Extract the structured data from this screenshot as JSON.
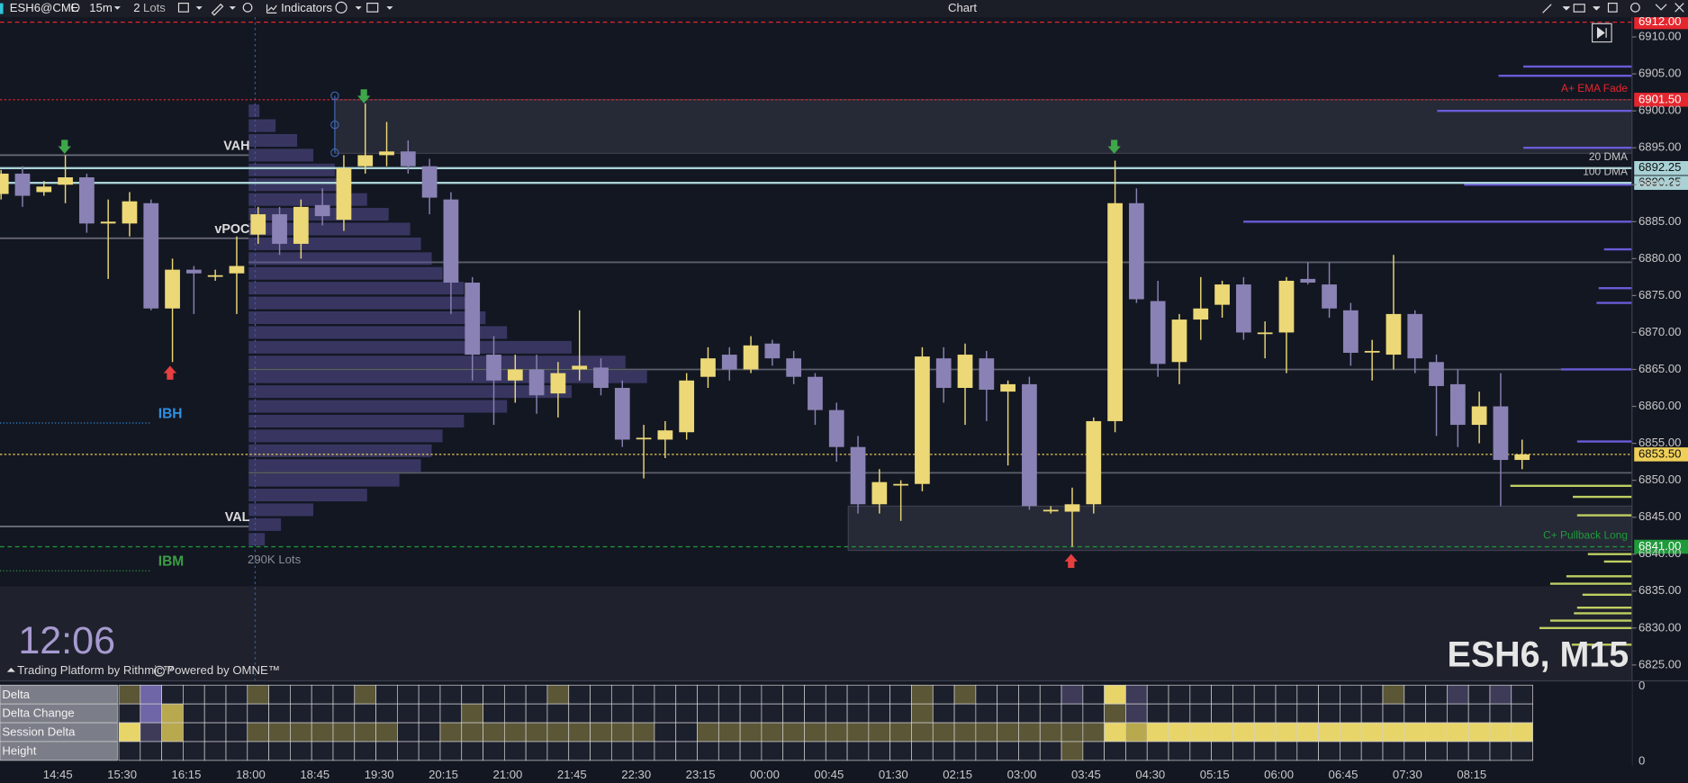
{
  "toolbar": {
    "symbol": "ESH6@CME",
    "interval": "15m",
    "quantity": 2,
    "quantity_unit": "Lots",
    "indicators": "Indicators",
    "title": "Chart"
  },
  "chart_data": {
    "type": "candlestick",
    "categories": [
      null,
      null,
      null,
      "14:45",
      null,
      null,
      "15:30",
      null,
      null,
      "16:15",
      null,
      null,
      "18:00",
      null,
      null,
      "18:45",
      null,
      null,
      "19:30",
      null,
      null,
      "20:15",
      null,
      null,
      "21:00",
      null,
      null,
      "21:45",
      null,
      null,
      "22:30",
      null,
      null,
      "23:15",
      null,
      null,
      "00:00",
      null,
      null,
      "00:45",
      null,
      null,
      "01:30",
      null,
      null,
      "02:15",
      null,
      null,
      "03:00",
      null,
      null,
      "03:45",
      null,
      null,
      "04:30",
      null,
      null,
      "05:15",
      null,
      null,
      "06:00",
      null,
      null,
      "06:45",
      null,
      null,
      "07:30",
      null,
      null,
      "08:15",
      null,
      null
    ],
    "open": [
      6888.75,
      6891.5,
      6889,
      6890,
      6891,
      6884.75,
      6884.75,
      6887.5,
      6873.25,
      6878.5,
      6877.75,
      6878,
      6883.25,
      6886,
      6882,
      6887.25,
      6885.25,
      6892.5,
      6894,
      6894.5,
      6892.5,
      6888,
      6876.75,
      6867,
      6863.5,
      6865,
      6861.75,
      6865,
      6865.25,
      6862.5,
      6855.75,
      6855.5,
      6856.5,
      6864,
      6867,
      6865,
      6868.5,
      6866.5,
      6864,
      6859.5,
      6854.5,
      6846.75,
      6849.5,
      6849.5,
      6866.5,
      6862.5,
      6866.5,
      6862,
      6863,
      6846,
      6845.75,
      6846.75,
      6858,
      6887.5,
      6874.25,
      6866,
      6871.75,
      6873.75,
      6876.5,
      6870,
      6870,
      6877.25,
      6876.5,
      6873,
      6867.5,
      6867,
      6872.5,
      6866,
      6863,
      6857.5,
      6860,
      6852.75
    ],
    "high": [
      6892,
      6892.5,
      6890.5,
      6894,
      6891.5,
      6888,
      6889,
      6888,
      6880,
      6879,
      6878.5,
      6883,
      6887,
      6887,
      6888,
      6889.5,
      6894,
      6901,
      6898.5,
      6896,
      6893.5,
      6889,
      6877.5,
      6869.5,
      6867,
      6867,
      6866,
      6873,
      6866.5,
      6863.5,
      6857.5,
      6858,
      6864.5,
      6868,
      6868,
      6869.5,
      6869,
      6867.5,
      6864.5,
      6860.5,
      6856,
      6851.5,
      6850,
      6868,
      6868,
      6868.5,
      6867.5,
      6863.5,
      6864,
      6846.5,
      6849,
      6858.5,
      6893.25,
      6889.5,
      6877,
      6872.5,
      6877.5,
      6877,
      6877.5,
      6871.5,
      6877.5,
      6879.5,
      6879.5,
      6874,
      6869,
      6880.5,
      6873,
      6867,
      6865,
      6862,
      6864.5,
      6855.5
    ],
    "low": [
      6888,
      6887,
      6888.5,
      6887.5,
      6883.5,
      6877.25,
      6883,
      6873,
      6866,
      6872.5,
      6877,
      6872.5,
      6882,
      6880.5,
      6880,
      6884.5,
      6883.75,
      6891.5,
      6892.5,
      6891.5,
      6886,
      6872.5,
      6863.5,
      6857.5,
      6860.5,
      6859,
      6858.5,
      6863.5,
      6861.5,
      6854.5,
      6850.25,
      6853,
      6855.5,
      6862.5,
      6863.5,
      6864.5,
      6865.5,
      6863,
      6857.5,
      6852.5,
      6845.5,
      6845.5,
      6844.5,
      6848.5,
      6860.5,
      6857.5,
      6858,
      6852,
      6846,
      6845.5,
      6841,
      6845.5,
      6856.5,
      6874,
      6864,
      6863,
      6869,
      6872,
      6869,
      6866.5,
      6864.5,
      6876.5,
      6872,
      6865.5,
      6863.5,
      6865,
      6864.5,
      6856,
      6854.5,
      6855,
      6846.5,
      6851.5
    ],
    "close": [
      6891.5,
      6888.5,
      6889.75,
      6891,
      6884.75,
      6885,
      6887.75,
      6873.25,
      6878.5,
      6878,
      6877.75,
      6879,
      6886,
      6882,
      6887,
      6885.75,
      6892.25,
      6894,
      6894.5,
      6892.5,
      6888.25,
      6876.75,
      6867,
      6863.5,
      6865,
      6861.5,
      6864.5,
      6865.5,
      6862.5,
      6855.5,
      6855.75,
      6856.75,
      6863.5,
      6866.5,
      6865,
      6868.25,
      6866.5,
      6864,
      6859.5,
      6854.5,
      6846.75,
      6849.75,
      6849.5,
      6866.75,
      6862.5,
      6867,
      6862.25,
      6863,
      6846.5,
      6846,
      6846.75,
      6858,
      6887.5,
      6874.5,
      6865.75,
      6871.75,
      6873.25,
      6876.5,
      6870,
      6870,
      6877,
      6876.75,
      6873.25,
      6867.25,
      6867.5,
      6872.5,
      6866.5,
      6862.75,
      6857.5,
      6860,
      6852.75,
      6853.5
    ],
    "up_color": "#ecd876",
    "down_color": "#8a82b4",
    "ylim": [
      6823,
      6915
    ],
    "yticks": [
      {
        "value": 6825,
        "label": "6825.00"
      },
      {
        "value": 6830,
        "label": "6830.00"
      },
      {
        "value": 6835,
        "label": "6835.00"
      },
      {
        "value": 6840,
        "label": "6840.00"
      },
      {
        "value": 6845,
        "label": "6845.00"
      },
      {
        "value": 6850,
        "label": "6850.00"
      },
      {
        "value": 6855,
        "label": "6855.00"
      },
      {
        "value": 6860,
        "label": "6860.00"
      },
      {
        "value": 6865,
        "label": "6865.00"
      },
      {
        "value": 6870,
        "label": "6870.00"
      },
      {
        "value": 6875,
        "label": "6875.00"
      },
      {
        "value": 6880,
        "label": "6880.00"
      },
      {
        "value": 6885,
        "label": "6885.00"
      },
      {
        "value": 6890,
        "label": "6890.00"
      },
      {
        "value": 6895,
        "label": "6895.00"
      },
      {
        "value": 6900,
        "label": "6900.00"
      },
      {
        "value": 6905,
        "label": "6905.00"
      },
      {
        "value": 6910,
        "label": "6910.00"
      }
    ]
  },
  "levels": [
    {
      "value": 6912,
      "label": "6912.00",
      "color": "#e5262e",
      "style": "dashed"
    },
    {
      "value": 6901.5,
      "label": "6901.50",
      "color": "#e5262e",
      "style": "dotted",
      "name": "A+ EMA Fade"
    },
    {
      "value": 6892.25,
      "label": "6892.25",
      "color": "#a8d2d6",
      "style": "solid",
      "name": "20 DMA"
    },
    {
      "value": 6890.25,
      "label": "6890.25",
      "color": "#a8d2d6",
      "style": "solid",
      "name": "100 DMA"
    },
    {
      "value": 6853.5,
      "label": "6853.50",
      "color": "#efcf58",
      "style": "dotted"
    },
    {
      "value": 6841,
      "label": "6841.00",
      "color": "#1f9a3a",
      "style": "dashed",
      "name": "C+ Pullback Long"
    }
  ],
  "zones": [
    {
      "high": 6901.5,
      "low": 6894.25
    },
    {
      "high": 6846.5,
      "low": 6840.5
    }
  ],
  "session_levels": [
    {
      "label": "VAH",
      "value": 6894
    },
    {
      "label": "vPOC",
      "value": 6882.75
    },
    {
      "label": "VAL",
      "value": 6843.75
    }
  ],
  "ib_levels": [
    {
      "label": "IBH",
      "value": 6857.75,
      "color": "#2f8fe0"
    },
    {
      "label": "IBM",
      "value": 6837.75,
      "color": "#3c9f45"
    }
  ],
  "gray_lines": [
    6879.5,
    6865,
    6851
  ],
  "volume_profile": {
    "label": "290K Lots",
    "xlim": [
      0,
      400
    ],
    "prices": [
      6900,
      6898,
      6896,
      6894,
      6892,
      6890,
      6888,
      6886,
      6884,
      6882,
      6880,
      6878,
      6876,
      6874,
      6872,
      6870,
      6868,
      6866,
      6864,
      6862,
      6860,
      6858,
      6856,
      6854,
      6852,
      6850,
      6848,
      6846,
      6844,
      6842
    ],
    "values": [
      10,
      25,
      45,
      60,
      80,
      90,
      110,
      130,
      150,
      160,
      170,
      180,
      200,
      210,
      220,
      240,
      300,
      350,
      370,
      300,
      240,
      200,
      180,
      170,
      160,
      140,
      110,
      60,
      30,
      15
    ]
  },
  "right_profile": [
    {
      "color": "#6a5bd8",
      "prices": [
        6906,
        6904.75,
        6900,
        6895,
        6890,
        6885,
        6881.25,
        6876,
        6874,
        6865,
        6855.25
      ],
      "values": [
        101,
        124,
        181,
        101,
        156,
        361,
        26,
        31,
        33,
        66,
        51
      ]
    },
    {
      "color": "#bfcf62",
      "prices": [
        6849.25,
        6847.75,
        6845.25,
        6840,
        6839,
        6837,
        6836,
        6834.5,
        6832.75,
        6832,
        6831,
        6830,
        6827.75
      ],
      "values": [
        113,
        55,
        51,
        41,
        26,
        61,
        76,
        46,
        51,
        54,
        76,
        86,
        56
      ]
    }
  ],
  "indicator_table": {
    "colors": [
      "#8a80c0",
      "#6f66a8",
      "#3d3b58",
      "#1c1f2c",
      "#5a5636",
      "#b8a84e",
      "#e8d56a"
    ],
    "rows": [
      {
        "name": "Delta",
        "values": [
          1,
          -2,
          0,
          0,
          0,
          0,
          1,
          0,
          0,
          0,
          0,
          1,
          0,
          0,
          0,
          0,
          0,
          0,
          0,
          0,
          1,
          0,
          0,
          0,
          0,
          0,
          0,
          0,
          0,
          0,
          0,
          0,
          0,
          0,
          0,
          0,
          0,
          1,
          0,
          1,
          0,
          0,
          0,
          0,
          -1,
          0,
          3,
          -1,
          0,
          0,
          0,
          0,
          0,
          0,
          0,
          0,
          0,
          0,
          0,
          1,
          0,
          0,
          -1,
          0,
          -1,
          0
        ]
      },
      {
        "name": "Delta Change",
        "values": [
          0,
          -2,
          2,
          0,
          0,
          0,
          0,
          0,
          0,
          0,
          0,
          0,
          0,
          0,
          0,
          0,
          1,
          0,
          0,
          0,
          0,
          0,
          0,
          0,
          0,
          0,
          0,
          0,
          0,
          0,
          0,
          0,
          0,
          0,
          0,
          0,
          0,
          1,
          0,
          0,
          0,
          0,
          0,
          0,
          0,
          0,
          1,
          -1,
          0,
          0,
          0,
          0,
          0,
          0,
          0,
          0,
          0,
          0,
          0,
          0,
          0,
          0,
          0,
          0,
          0,
          0
        ]
      },
      {
        "name": "Session Delta",
        "values": [
          3,
          -1,
          2,
          0,
          0,
          0,
          1,
          1,
          1,
          1,
          1,
          1,
          1,
          0,
          0,
          1,
          1,
          1,
          1,
          1,
          1,
          1,
          1,
          1,
          1,
          0,
          0,
          1,
          1,
          1,
          1,
          1,
          1,
          1,
          1,
          1,
          1,
          1,
          1,
          1,
          1,
          1,
          1,
          1,
          1,
          1,
          3,
          2,
          3,
          3,
          3,
          3,
          3,
          3,
          3,
          3,
          3,
          3,
          3,
          3,
          3,
          3,
          3,
          3,
          3,
          3
        ]
      },
      {
        "name": "Height",
        "values": [
          0,
          0,
          0,
          0,
          0,
          0,
          0,
          0,
          0,
          0,
          0,
          0,
          0,
          0,
          0,
          0,
          0,
          0,
          0,
          0,
          0,
          0,
          0,
          0,
          0,
          0,
          0,
          0,
          0,
          0,
          0,
          0,
          0,
          0,
          0,
          0,
          0,
          0,
          0,
          0,
          0,
          0,
          0,
          0,
          1,
          0,
          0,
          0,
          0,
          0,
          0,
          0,
          0,
          0,
          0,
          0,
          0,
          0,
          0,
          0,
          0,
          0,
          0,
          0,
          0,
          0
        ]
      }
    ]
  },
  "indicator_ticks": [
    0,
    0
  ],
  "clock": "12:06",
  "watermark": "ESH6, M15",
  "branding": {
    "rithmic": "Trading Platform by Rithmic™",
    "omne": "Powered by OMNE™"
  }
}
